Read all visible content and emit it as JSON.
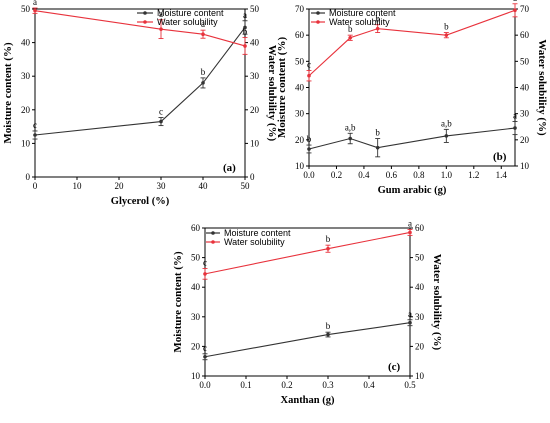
{
  "figure": {
    "background": "#ffffff",
    "colors": {
      "moisture": "#333333",
      "water": "#e8323c"
    }
  },
  "chart_data": [
    {
      "panel": "(a)",
      "type": "line",
      "xlabel": "Glycerol (%)",
      "ylabel_left": "Moisture content (%)",
      "ylabel_right": "Water solubility (%)",
      "xlim": [
        0,
        50
      ],
      "ylim_left": [
        0,
        50
      ],
      "ylim_right": [
        0,
        50
      ],
      "xticks": [
        0,
        10,
        20,
        30,
        40,
        50
      ],
      "yticks_left": [
        0,
        10,
        20,
        30,
        40,
        50
      ],
      "yticks_right": [
        0,
        10,
        20,
        30,
        40,
        50
      ],
      "legend_position": "top-right",
      "series": [
        {
          "name": "Moisture content",
          "color": "#333333",
          "axis": "left",
          "x": [
            0,
            30,
            40,
            50
          ],
          "y": [
            12.5,
            16.5,
            28,
            44.5
          ],
          "err": [
            1.2,
            1.2,
            1.5,
            2
          ],
          "letters": [
            "c",
            "c",
            "b",
            "a"
          ]
        },
        {
          "name": "Water solubility",
          "color": "#e8323c",
          "axis": "right",
          "x": [
            0,
            30,
            40,
            50
          ],
          "y": [
            49.5,
            44,
            42.5,
            39
          ],
          "err": [
            0.8,
            2.8,
            1.2,
            2.5
          ],
          "letters": [
            "a",
            "a",
            "a",
            "b"
          ]
        }
      ]
    },
    {
      "panel": "(b)",
      "type": "line",
      "xlabel": "Gum arabic (g)",
      "ylabel_left": "Moisture content (%)",
      "ylabel_right": "Water solubility (%)",
      "xlim": [
        0,
        1.5
      ],
      "ylim_left": [
        10,
        70
      ],
      "ylim_right": [
        10,
        70
      ],
      "xticks": [
        0.0,
        0.2,
        0.4,
        0.6,
        0.8,
        1.0,
        1.2,
        1.4
      ],
      "yticks_left": [
        10,
        20,
        30,
        40,
        50,
        60,
        70
      ],
      "yticks_right": [
        10,
        20,
        30,
        40,
        50,
        60,
        70
      ],
      "legend_position": "top-left",
      "series": [
        {
          "name": "Moisture content",
          "color": "#333333",
          "axis": "left",
          "x": [
            0,
            0.3,
            0.5,
            1.0,
            1.5
          ],
          "y": [
            16.5,
            20.5,
            17,
            21.5,
            24.5
          ],
          "err": [
            1.5,
            2,
            3.5,
            2.5,
            2.5
          ],
          "letters": [
            "b",
            "a,b",
            "b",
            "a,b",
            "a"
          ]
        },
        {
          "name": "Water solubility",
          "color": "#e8323c",
          "axis": "right",
          "x": [
            0,
            0.3,
            0.5,
            1.0,
            1.5
          ],
          "y": [
            44.5,
            59,
            62.5,
            60,
            69.5
          ],
          "err": [
            2,
            1,
            1.5,
            1,
            2.5
          ],
          "letters": [
            "c",
            "b",
            "b",
            "b",
            "a"
          ]
        }
      ]
    },
    {
      "panel": "(c)",
      "type": "line",
      "xlabel": "Xanthan (g)",
      "ylabel_left": "Moisture content (%)",
      "ylabel_right": "Water solubility (%)",
      "xlim": [
        0,
        0.5
      ],
      "ylim_left": [
        10,
        60
      ],
      "ylim_right": [
        10,
        60
      ],
      "xticks": [
        0.0,
        0.1,
        0.2,
        0.3,
        0.4,
        0.5
      ],
      "yticks_left": [
        10,
        20,
        30,
        40,
        50,
        60
      ],
      "yticks_right": [
        10,
        20,
        30,
        40,
        50,
        60
      ],
      "legend_position": "top-left",
      "series": [
        {
          "name": "Moisture content",
          "color": "#333333",
          "axis": "left",
          "x": [
            0,
            0.3,
            0.5
          ],
          "y": [
            16.5,
            24,
            28
          ],
          "err": [
            1,
            0.8,
            1
          ],
          "letters": [
            "c",
            "b",
            "a"
          ]
        },
        {
          "name": "Water solubility",
          "color": "#e8323c",
          "axis": "right",
          "x": [
            0,
            0.3,
            0.5
          ],
          "y": [
            44.5,
            53,
            58.5
          ],
          "err": [
            1.8,
            1.2,
            1
          ],
          "letters": [
            "c",
            "b",
            "a"
          ]
        }
      ]
    }
  ]
}
